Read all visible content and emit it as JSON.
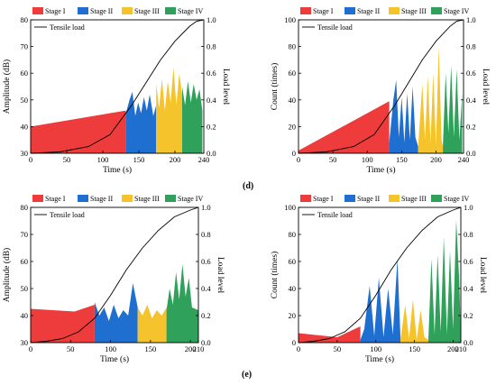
{
  "figure": {
    "label_d": "(d)",
    "label_e": "(e)"
  },
  "colors": {
    "stage1": "#ee3b3b",
    "stage2": "#1f6fd1",
    "stage3": "#f5c42c",
    "stage4": "#2fa15a",
    "load": "#000000"
  },
  "chart_data": [
    {
      "type": "area",
      "xlabel": "Time (s)",
      "ylabel": "Amplitude (dB)",
      "y2label": "Load level",
      "xlim": [
        0,
        240
      ],
      "ylim": [
        30,
        80
      ],
      "y2lim": [
        0.0,
        1.0
      ],
      "xticks": [
        0,
        50,
        100,
        150,
        200,
        240
      ],
      "yticks": [
        30,
        40,
        50,
        60,
        70,
        80
      ],
      "y2ticks": [
        "0.0",
        "0.2",
        "0.4",
        "0.6",
        "0.8",
        "1.0"
      ],
      "legend": [
        "Stage I",
        "Stage II",
        "Stage III",
        "Stage IV"
      ],
      "load_label": "Tensile load",
      "series": [
        {
          "name": "Stage I",
          "color_key": "stage1",
          "x": [
            0,
            132
          ],
          "y": [
            40,
            46
          ]
        },
        {
          "name": "Stage II",
          "color_key": "stage2",
          "x": [
            132,
            137,
            141,
            145,
            149,
            153,
            157,
            161,
            165,
            170,
            174
          ],
          "y": [
            45,
            50,
            53,
            44,
            49,
            45,
            51,
            46,
            52,
            44,
            48
          ]
        },
        {
          "name": "Stage III",
          "color_key": "stage3",
          "x": [
            174,
            178,
            182,
            186,
            190,
            194,
            198,
            202,
            206,
            210
          ],
          "y": [
            56,
            47,
            58,
            46,
            57,
            49,
            62,
            48,
            60,
            52
          ]
        },
        {
          "name": "Stage IV",
          "color_key": "stage4",
          "x": [
            210,
            214,
            218,
            222,
            226,
            230,
            234,
            238
          ],
          "y": [
            55,
            48,
            57,
            49,
            56,
            50,
            54,
            46
          ]
        }
      ],
      "load": {
        "x": [
          0,
          40,
          80,
          110,
          140,
          160,
          180,
          200,
          220,
          230,
          240
        ],
        "y": [
          0.0,
          0.01,
          0.05,
          0.14,
          0.36,
          0.53,
          0.7,
          0.84,
          0.95,
          0.99,
          1.0
        ]
      }
    },
    {
      "type": "area",
      "xlabel": "Time (s)",
      "ylabel": "Count (times)",
      "y2label": "Load level",
      "xlim": [
        0,
        240
      ],
      "ylim": [
        0,
        100
      ],
      "y2lim": [
        0.0,
        1.0
      ],
      "xticks": [
        0,
        50,
        100,
        150,
        200,
        240
      ],
      "yticks": [
        0,
        20,
        40,
        60,
        80,
        100
      ],
      "y2ticks": [
        "0.0",
        "0.2",
        "0.4",
        "0.6",
        "0.8",
        "1.0"
      ],
      "legend": [
        "Stage I",
        "Stage II",
        "Stage III",
        "Stage IV"
      ],
      "load_label": "Tensile load",
      "series": [
        {
          "name": "Stage I",
          "color_key": "stage1",
          "x": [
            0,
            132
          ],
          "y": [
            2,
            39
          ]
        },
        {
          "name": "Stage II",
          "color_key": "stage2",
          "x": [
            132,
            138,
            142,
            146,
            150,
            154,
            158,
            162,
            166,
            170,
            174
          ],
          "y": [
            8,
            40,
            55,
            12,
            42,
            8,
            45,
            10,
            50,
            12,
            5
          ]
        },
        {
          "name": "Stage III",
          "color_key": "stage3",
          "x": [
            174,
            180,
            184,
            188,
            192,
            196,
            200,
            204,
            208,
            210
          ],
          "y": [
            5,
            52,
            10,
            58,
            8,
            60,
            6,
            80,
            10,
            5
          ]
        },
        {
          "name": "Stage IV",
          "color_key": "stage4",
          "x": [
            210,
            214,
            218,
            222,
            226,
            230,
            234,
            238
          ],
          "y": [
            5,
            60,
            15,
            66,
            12,
            63,
            10,
            45
          ]
        }
      ],
      "load": {
        "x": [
          0,
          40,
          80,
          110,
          140,
          160,
          180,
          200,
          220,
          230,
          240
        ],
        "y": [
          0.0,
          0.01,
          0.05,
          0.14,
          0.36,
          0.53,
          0.7,
          0.84,
          0.95,
          0.99,
          1.0
        ]
      }
    },
    {
      "type": "area",
      "xlabel": "Time (s)",
      "ylabel": "Amplitude (dB)",
      "y2label": "Load level",
      "xlim": [
        0,
        210
      ],
      "ylim": [
        30,
        80
      ],
      "y2lim": [
        0.0,
        1.0
      ],
      "xticks": [
        0,
        50,
        100,
        150,
        200,
        210
      ],
      "yticks": [
        30,
        40,
        50,
        60,
        70,
        80
      ],
      "y2ticks": [
        "0.0",
        "0.2",
        "0.4",
        "0.6",
        "0.8",
        "1.0"
      ],
      "legend": [
        "Stage I",
        "Stage II",
        "Stage III",
        "Stage IV"
      ],
      "load_label": "Tensile load",
      "series": [
        {
          "name": "Stage I",
          "color_key": "stage1",
          "x": [
            0,
            55,
            80
          ],
          "y": [
            42.5,
            41.5,
            44
          ]
        },
        {
          "name": "Stage II",
          "color_key": "stage2",
          "x": [
            80,
            86,
            92,
            98,
            104,
            110,
            116,
            122,
            128,
            134
          ],
          "y": [
            45,
            40,
            43,
            38,
            44,
            39,
            42,
            40,
            52,
            43
          ]
        },
        {
          "name": "Stage III",
          "color_key": "stage3",
          "x": [
            134,
            140,
            146,
            152,
            158,
            164,
            170
          ],
          "y": [
            43,
            40,
            44,
            39,
            42,
            40,
            43
          ]
        },
        {
          "name": "Stage IV",
          "color_key": "stage4",
          "x": [
            170,
            174,
            178,
            182,
            186,
            190,
            194,
            198,
            202,
            210
          ],
          "y": [
            42,
            50,
            44,
            56,
            46,
            59,
            47,
            54,
            43,
            42
          ]
        }
      ],
      "load": {
        "x": [
          0,
          20,
          40,
          60,
          80,
          100,
          120,
          140,
          160,
          180,
          200,
          210
        ],
        "y": [
          0.0,
          0.01,
          0.03,
          0.08,
          0.18,
          0.35,
          0.54,
          0.7,
          0.83,
          0.93,
          0.98,
          1.0
        ]
      }
    },
    {
      "type": "area",
      "xlabel": "Time (s)",
      "ylabel": "Count (times)",
      "y2label": "Load level",
      "xlim": [
        0,
        210
      ],
      "ylim": [
        0,
        100
      ],
      "y2lim": [
        0.0,
        1.0
      ],
      "xticks": [
        0,
        50,
        100,
        150,
        200,
        210
      ],
      "yticks": [
        0,
        20,
        40,
        60,
        80,
        100
      ],
      "y2ticks": [
        "0.0",
        "0.2",
        "0.4",
        "0.6",
        "0.8",
        "1.0"
      ],
      "legend": [
        "Stage I",
        "Stage II",
        "Stage III",
        "Stage IV"
      ],
      "load_label": "Tensile load",
      "series": [
        {
          "name": "Stage I",
          "color_key": "stage1",
          "x": [
            0,
            50,
            80
          ],
          "y": [
            7,
            4,
            12
          ]
        },
        {
          "name": "Stage II",
          "color_key": "stage2",
          "x": [
            80,
            85,
            92,
            98,
            104,
            110,
            116,
            122,
            128,
            132
          ],
          "y": [
            2,
            10,
            42,
            5,
            48,
            4,
            40,
            6,
            62,
            3
          ]
        },
        {
          "name": "Stage III",
          "color_key": "stage3",
          "x": [
            132,
            138,
            143,
            148,
            153,
            158,
            163,
            168
          ],
          "y": [
            2,
            28,
            3,
            32,
            2,
            24,
            4,
            2
          ]
        },
        {
          "name": "Stage IV",
          "color_key": "stage4",
          "x": [
            168,
            172,
            176,
            180,
            184,
            188,
            192,
            196,
            200,
            204,
            208,
            210
          ],
          "y": [
            2,
            62,
            6,
            65,
            8,
            78,
            6,
            68,
            10,
            91,
            45,
            5
          ]
        }
      ],
      "load": {
        "x": [
          0,
          20,
          40,
          60,
          80,
          100,
          120,
          140,
          160,
          180,
          200,
          210
        ],
        "y": [
          0.0,
          0.01,
          0.03,
          0.08,
          0.18,
          0.35,
          0.54,
          0.7,
          0.83,
          0.93,
          0.98,
          1.0
        ]
      }
    }
  ]
}
